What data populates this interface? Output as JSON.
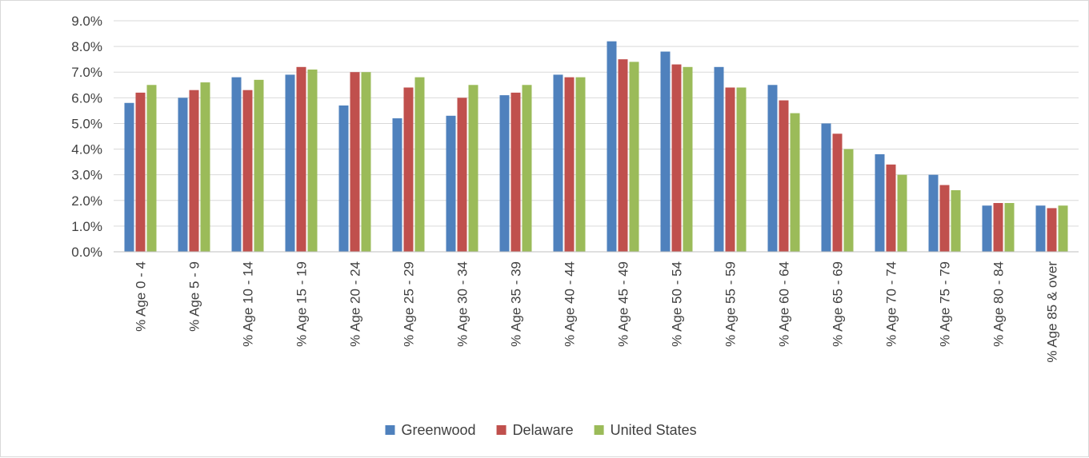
{
  "chart_data": {
    "type": "bar",
    "categories": [
      "% Age 0 - 4",
      "% Age 5 - 9",
      "% Age 10 - 14",
      "% Age 15 - 19",
      "% Age 20 - 24",
      "% Age 25 - 29",
      "% Age 30 - 34",
      "% Age 35 - 39",
      "% Age 40 - 44",
      "% Age 45 - 49",
      "% Age 50 - 54",
      "% Age 55 - 59",
      "% Age 60 - 64",
      "% Age 65 - 69",
      "% Age 70 - 74",
      "% Age 75 - 79",
      "% Age 80 - 84",
      "% Age 85 & over"
    ],
    "series": [
      {
        "name": "Greenwood",
        "color": "#4f81bd",
        "values": [
          5.8,
          6.0,
          6.8,
          6.9,
          5.7,
          5.2,
          5.3,
          6.1,
          6.9,
          8.2,
          7.8,
          7.2,
          6.5,
          5.0,
          3.8,
          3.0,
          1.8,
          1.8
        ]
      },
      {
        "name": "Delaware",
        "color": "#c0504d",
        "values": [
          6.2,
          6.3,
          6.3,
          7.2,
          7.0,
          6.4,
          6.0,
          6.2,
          6.8,
          7.5,
          7.3,
          6.4,
          5.9,
          4.6,
          3.4,
          2.6,
          1.9,
          1.7
        ]
      },
      {
        "name": "United States",
        "color": "#9bbb59",
        "values": [
          6.5,
          6.6,
          6.7,
          7.1,
          7.0,
          6.8,
          6.5,
          6.5,
          6.8,
          7.4,
          7.2,
          6.4,
          5.4,
          4.0,
          3.0,
          2.4,
          1.9,
          1.8
        ]
      }
    ],
    "yticks": [
      "0.0%",
      "1.0%",
      "2.0%",
      "3.0%",
      "4.0%",
      "5.0%",
      "6.0%",
      "7.0%",
      "8.0%",
      "9.0%"
    ],
    "ylim": [
      0,
      9
    ],
    "xlabel": "",
    "ylabel": "",
    "title": "",
    "grid": true,
    "legend": "bottom-center"
  }
}
